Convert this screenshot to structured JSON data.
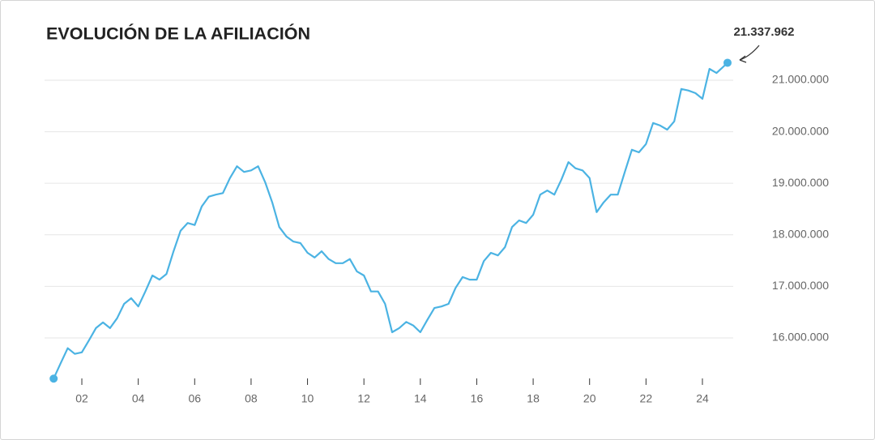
{
  "chart_data": {
    "type": "line",
    "title": "EVOLUCIÓN DE LA AFILIACIÓN",
    "x": [
      2001.0,
      2001.25,
      2001.5,
      2001.75,
      2002.0,
      2002.25,
      2002.5,
      2002.75,
      2003.0,
      2003.25,
      2003.5,
      2003.75,
      2004.0,
      2004.25,
      2004.5,
      2004.75,
      2005.0,
      2005.25,
      2005.5,
      2005.75,
      2006.0,
      2006.25,
      2006.5,
      2006.75,
      2007.0,
      2007.25,
      2007.5,
      2007.75,
      2008.0,
      2008.25,
      2008.5,
      2008.75,
      2009.0,
      2009.25,
      2009.5,
      2009.75,
      2010.0,
      2010.25,
      2010.5,
      2010.75,
      2011.0,
      2011.25,
      2011.5,
      2011.75,
      2012.0,
      2012.25,
      2012.5,
      2012.75,
      2013.0,
      2013.25,
      2013.5,
      2013.75,
      2014.0,
      2014.25,
      2014.5,
      2014.75,
      2015.0,
      2015.25,
      2015.5,
      2015.75,
      2016.0,
      2016.25,
      2016.5,
      2016.75,
      2017.0,
      2017.25,
      2017.5,
      2017.75,
      2018.0,
      2018.25,
      2018.5,
      2018.75,
      2019.0,
      2019.25,
      2019.5,
      2019.75,
      2020.0,
      2020.25,
      2020.5,
      2020.75,
      2021.0,
      2021.25,
      2021.5,
      2021.75,
      2022.0,
      2022.25,
      2022.5,
      2022.75,
      2023.0,
      2023.25,
      2023.5,
      2023.75,
      2024.0,
      2024.25,
      2024.5,
      2024.89
    ],
    "series": [
      {
        "color": "#4bb3e3",
        "values": [
          15210000,
          15510000,
          15800000,
          15690000,
          15720000,
          15950000,
          16190000,
          16300000,
          16190000,
          16380000,
          16660000,
          16770000,
          16610000,
          16900000,
          17210000,
          17130000,
          17240000,
          17680000,
          18080000,
          18230000,
          18190000,
          18550000,
          18740000,
          18780000,
          18810000,
          19100000,
          19330000,
          19220000,
          19250000,
          19330000,
          19020000,
          18630000,
          18150000,
          17970000,
          17870000,
          17840000,
          17650000,
          17560000,
          17680000,
          17530000,
          17450000,
          17450000,
          17530000,
          17290000,
          17210000,
          16900000,
          16900000,
          16660000,
          16110000,
          16190000,
          16310000,
          16240000,
          16110000,
          16350000,
          16580000,
          16610000,
          16660000,
          16970000,
          17180000,
          17130000,
          17130000,
          17490000,
          17650000,
          17600000,
          17760000,
          18150000,
          18280000,
          18230000,
          18390000,
          18780000,
          18860000,
          18780000,
          19070000,
          19410000,
          19290000,
          19250000,
          19100000,
          18440000,
          18630000,
          18780000,
          18780000,
          19220000,
          19650000,
          19600000,
          19760000,
          20170000,
          20120000,
          20040000,
          20200000,
          20830000,
          20800000,
          20750000,
          20640000,
          21220000,
          21140000,
          21337962
        ],
        "value_labels": [
          null,
          null,
          null,
          null,
          null,
          null,
          null,
          null,
          null,
          null,
          null,
          null,
          null,
          null,
          null,
          null,
          null,
          null,
          null,
          null,
          null,
          null,
          null,
          null,
          null,
          null,
          null,
          null,
          null,
          null,
          null,
          null,
          null,
          null,
          null,
          null,
          null,
          null,
          null,
          null,
          null,
          null,
          null,
          null,
          null,
          null,
          null,
          null,
          null,
          null,
          null,
          null,
          null,
          null,
          null,
          null,
          null,
          null,
          null,
          null,
          null,
          null,
          null,
          null,
          null,
          null,
          null,
          null,
          null,
          null,
          null,
          null,
          null,
          null,
          null,
          null,
          null,
          null,
          null,
          null,
          null,
          null,
          null,
          null,
          null,
          null,
          null,
          null,
          null,
          null,
          null,
          null,
          null,
          null,
          null,
          "21.337.962"
        ]
      }
    ],
    "xlim": [
      2000.75,
      2025.25
    ],
    "xticks": [
      {
        "value": 2002,
        "label": "02"
      },
      {
        "value": 2004,
        "label": "04"
      },
      {
        "value": 2006,
        "label": "06"
      },
      {
        "value": 2008,
        "label": "08"
      },
      {
        "value": 2010,
        "label": "10"
      },
      {
        "value": 2012,
        "label": "12"
      },
      {
        "value": 2014,
        "label": "14"
      },
      {
        "value": 2016,
        "label": "16"
      },
      {
        "value": 2018,
        "label": "18"
      },
      {
        "value": 2020,
        "label": "20"
      },
      {
        "value": 2022,
        "label": "22"
      },
      {
        "value": 2024,
        "label": "24"
      }
    ],
    "ylim": [
      15000000,
      21600000
    ],
    "yticks": [
      {
        "value": 16000000,
        "label": "16.000.000"
      },
      {
        "value": 17000000,
        "label": "17.000.000"
      },
      {
        "value": 18000000,
        "label": "18.000.000"
      },
      {
        "value": 19000000,
        "label": "19.000.000"
      },
      {
        "value": 20000000,
        "label": "20.000.000"
      },
      {
        "value": 21000000,
        "label": "21.000.000"
      }
    ],
    "grid": true
  }
}
